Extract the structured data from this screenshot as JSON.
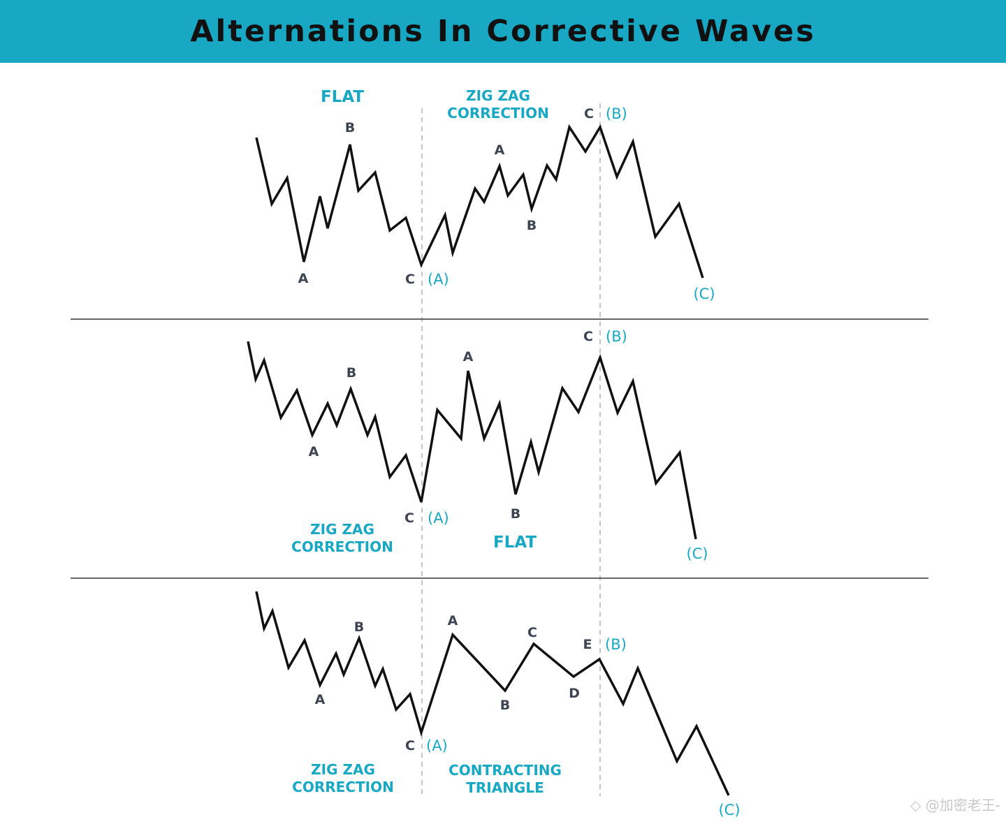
{
  "header": {
    "title": "Alternations In Corrective Waves"
  },
  "colors": {
    "header_bg": "#18a8c4",
    "accent": "#18a8c4",
    "wave_line": "#111111",
    "label_dark": "#3f4452",
    "divider": "#333333",
    "dashed": "#b0b0b0"
  },
  "panel1": {
    "left_title": "FLAT",
    "right_title_line1": "ZIG ZAG",
    "right_title_line2": "CORRECTION",
    "labels": {
      "a": "A",
      "b": "B",
      "c": "C",
      "a2": "A",
      "b2": "B",
      "c2": "C"
    },
    "wave_labels": {
      "a": "(A)",
      "b": "(B)",
      "c": "(C)"
    }
  },
  "panel2": {
    "left_title_line1": "ZIG ZAG",
    "left_title_line2": "CORRECTION",
    "right_title": "FLAT",
    "labels": {
      "a": "A",
      "b": "B",
      "c": "C",
      "a2": "A",
      "b2": "B",
      "c2": "C"
    },
    "wave_labels": {
      "a": "(A)",
      "b": "(B)",
      "c": "(C)"
    }
  },
  "panel3": {
    "left_title_line1": "ZIG ZAG",
    "left_title_line2": "CORRECTION",
    "right_title_line1": "CONTRACTING",
    "right_title_line2": "TRIANGLE",
    "labels": {
      "a": "A",
      "b": "B",
      "c": "C",
      "ta": "A",
      "tb": "B",
      "tc": "C",
      "td": "D",
      "te": "E"
    },
    "wave_labels": {
      "a": "(A)",
      "b": "(B)",
      "c": "(C)"
    }
  },
  "watermark": {
    "text": "@加密老王-"
  }
}
